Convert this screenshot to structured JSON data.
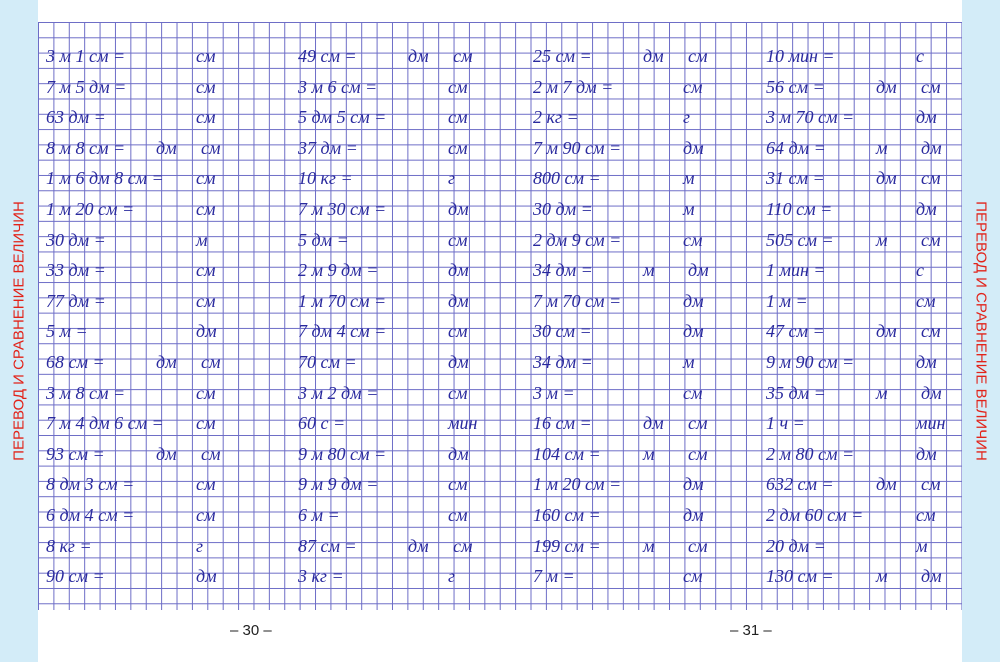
{
  "side_titles": [
    "ПЕРЕВОД И СРАВНЕНИЕ ВЕЛИЧИН",
    "ПЕРЕВОД И СРАВНЕНИЕ ВЕЛИЧИН"
  ],
  "page_numbers": [
    "– 30 –",
    "– 31 –"
  ],
  "columns": [
    [
      {
        "expr": "3 м 1 см =",
        "units": [
          "см"
        ]
      },
      {
        "expr": "7 м 5 дм =",
        "units": [
          "см"
        ]
      },
      {
        "expr": "63 дм =",
        "units": [
          "см"
        ]
      },
      {
        "expr": "8 м 8 см =",
        "units": [
          "дм",
          "см"
        ]
      },
      {
        "expr": "1 м 6 дм 8 см =",
        "units": [
          "см"
        ]
      },
      {
        "expr": "1 м 20 см =",
        "units": [
          "см"
        ]
      },
      {
        "expr": "30 дм =",
        "units": [
          "м"
        ]
      },
      {
        "expr": "33 дм =",
        "units": [
          "см"
        ]
      },
      {
        "expr": "77 дм =",
        "units": [
          "см"
        ]
      },
      {
        "expr": "5 м =",
        "units": [
          "дм"
        ]
      },
      {
        "expr": "68 см =",
        "units": [
          "дм",
          "см"
        ]
      },
      {
        "expr": "3 м 8 см =",
        "units": [
          "см"
        ]
      },
      {
        "expr": "7 м 4 дм 6 см =",
        "units": [
          "см"
        ]
      },
      {
        "expr": "93 см =",
        "units": [
          "дм",
          "см"
        ]
      },
      {
        "expr": "8 дм 3 см =",
        "units": [
          "см"
        ]
      },
      {
        "expr": "6 дм 4 см =",
        "units": [
          "см"
        ]
      },
      {
        "expr": "8 кг =",
        "units": [
          "г"
        ]
      },
      {
        "expr": "90 см =",
        "units": [
          "дм"
        ]
      }
    ],
    [
      {
        "expr": "49 см =",
        "units": [
          "дм",
          "см"
        ]
      },
      {
        "expr": "3 м 6 см =",
        "units": [
          "см"
        ]
      },
      {
        "expr": "5 дм 5 см =",
        "units": [
          "см"
        ]
      },
      {
        "expr": "37 дм =",
        "units": [
          "см"
        ]
      },
      {
        "expr": "10 кг =",
        "units": [
          "г"
        ]
      },
      {
        "expr": "7 м 30 см =",
        "units": [
          "дм"
        ]
      },
      {
        "expr": "5 дм =",
        "units": [
          "см"
        ]
      },
      {
        "expr": "2 м 9 дм =",
        "units": [
          "дм"
        ]
      },
      {
        "expr": "1 м 70 см =",
        "units": [
          "дм"
        ]
      },
      {
        "expr": "7 дм 4 см =",
        "units": [
          "см"
        ]
      },
      {
        "expr": "70 см =",
        "units": [
          "дм"
        ]
      },
      {
        "expr": "3 м 2 дм =",
        "units": [
          "см"
        ]
      },
      {
        "expr": "60 с =",
        "units": [
          "мин"
        ]
      },
      {
        "expr": "9 м 80 см =",
        "units": [
          "дм"
        ]
      },
      {
        "expr": "9 м 9 дм =",
        "units": [
          "см"
        ]
      },
      {
        "expr": "6 м =",
        "units": [
          "см"
        ]
      },
      {
        "expr": "87 см =",
        "units": [
          "дм",
          "см"
        ]
      },
      {
        "expr": "3 кг =",
        "units": [
          "г"
        ]
      }
    ],
    [
      {
        "expr": "25 см =",
        "units": [
          "дм",
          "см"
        ]
      },
      {
        "expr": "2 м 7 дм =",
        "units": [
          "см"
        ]
      },
      {
        "expr": "2 кг =",
        "units": [
          "г"
        ]
      },
      {
        "expr": "7 м 90 см =",
        "units": [
          "дм"
        ]
      },
      {
        "expr": "800 см =",
        "units": [
          "м"
        ]
      },
      {
        "expr": "30 дм =",
        "units": [
          "м"
        ]
      },
      {
        "expr": "2 дм 9 см =",
        "units": [
          "см"
        ]
      },
      {
        "expr": "34 дм =",
        "units": [
          "м",
          "дм"
        ]
      },
      {
        "expr": "7 м 70 см =",
        "units": [
          "дм"
        ]
      },
      {
        "expr": "30 см =",
        "units": [
          "дм"
        ]
      },
      {
        "expr": "34 дм =",
        "units": [
          "м"
        ]
      },
      {
        "expr": "3 м =",
        "units": [
          "см"
        ]
      },
      {
        "expr": "16 см =",
        "units": [
          "дм",
          "см"
        ]
      },
      {
        "expr": "104 см =",
        "units": [
          "м",
          "см"
        ]
      },
      {
        "expr": "1 м 20 см =",
        "units": [
          "дм"
        ]
      },
      {
        "expr": "160 см =",
        "units": [
          "дм"
        ]
      },
      {
        "expr": "199 см =",
        "units": [
          "м",
          "см"
        ]
      },
      {
        "expr": "7 м =",
        "units": [
          "см"
        ]
      }
    ],
    [
      {
        "expr": "10 мин =",
        "units": [
          "с"
        ]
      },
      {
        "expr": "56 см =",
        "units": [
          "дм",
          "см"
        ]
      },
      {
        "expr": "3 м 70 см =",
        "units": [
          "дм"
        ]
      },
      {
        "expr": "64 дм =",
        "units": [
          "м",
          "дм"
        ]
      },
      {
        "expr": "31 см =",
        "units": [
          "дм",
          "см"
        ]
      },
      {
        "expr": "110 см =",
        "units": [
          "дм"
        ]
      },
      {
        "expr": "505 см =",
        "units": [
          "м",
          "см"
        ]
      },
      {
        "expr": "1 мин =",
        "units": [
          "с"
        ]
      },
      {
        "expr": "1 м =",
        "units": [
          "см"
        ]
      },
      {
        "expr": "47 см =",
        "units": [
          "дм",
          "см"
        ]
      },
      {
        "expr": "9 м 90 см =",
        "units": [
          "дм"
        ]
      },
      {
        "expr": "35 дм =",
        "units": [
          "м",
          "дм"
        ]
      },
      {
        "expr": "1 ч =",
        "units": [
          "мин"
        ]
      },
      {
        "expr": "2 м 80 см =",
        "units": [
          "дм"
        ]
      },
      {
        "expr": "632 см =",
        "units": [
          "дм",
          "см"
        ]
      },
      {
        "expr": "2 дм 60 см =",
        "units": [
          "см"
        ]
      },
      {
        "expr": "20 дм =",
        "units": [
          "м"
        ]
      },
      {
        "expr": "130 см =",
        "units": [
          "м",
          "дм"
        ]
      }
    ]
  ]
}
